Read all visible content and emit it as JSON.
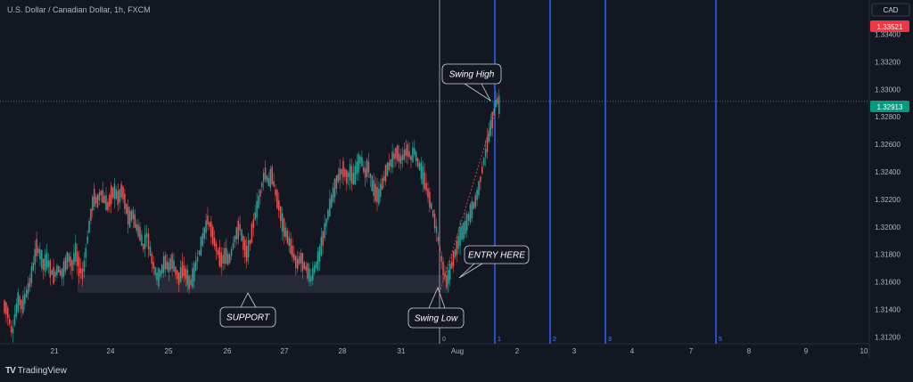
{
  "header": {
    "title": "U.S. Dollar / Canadian Dollar, 1h, FXCM"
  },
  "footer": {
    "brand": "TradingView",
    "brand_mark": "TV"
  },
  "price_scale": {
    "currency": "CAD"
  },
  "colors": {
    "background": "#131722",
    "up": "#26a69a",
    "down": "#ef5350",
    "vline": "#2962ff",
    "grid": "#1e222d",
    "support_zone": "#2a2e39"
  },
  "chart_data": {
    "type": "candlestick",
    "symbol": "U.S. Dollar / Canadian Dollar",
    "timeframe": "1h",
    "source": "FXCM",
    "ylim": [
      1.3115,
      1.3365
    ],
    "yticks": [
      "1.33400",
      "1.33200",
      "1.33000",
      "1.32800",
      "1.32600",
      "1.32400",
      "1.32200",
      "1.32000",
      "1.31800",
      "1.31600",
      "1.31400",
      "1.31200"
    ],
    "xticks": [
      "21",
      "24",
      "25",
      "26",
      "27",
      "28",
      "31",
      "Aug",
      "2",
      "3",
      "4",
      "7",
      "8",
      "9",
      "10"
    ],
    "price_badges": [
      {
        "value": "1.33521",
        "color": "#f23645"
      },
      {
        "value": "1.32913",
        "color": "#089981"
      }
    ],
    "current_price": 1.32913,
    "support_zone": {
      "low": 1.3152,
      "high": 1.3165
    },
    "key_points": [
      {
        "name": "Swing Low",
        "x": "31 Jul",
        "y": 1.3159
      },
      {
        "name": "Swing High",
        "x": "1 Aug",
        "y": 1.3298
      }
    ],
    "vertical_line_labels": [
      "0",
      "1",
      "2",
      "3",
      "5"
    ],
    "annotations": [
      "Swing High",
      "ENTRY HERE",
      "SUPPORT",
      "Swing Low"
    ],
    "path": [
      [
        0,
        1.3142
      ],
      [
        3,
        1.314
      ],
      [
        6,
        1.313
      ],
      [
        9,
        1.3122
      ],
      [
        12,
        1.3135
      ],
      [
        16,
        1.3148
      ],
      [
        20,
        1.3142
      ],
      [
        24,
        1.315
      ],
      [
        28,
        1.3158
      ],
      [
        32,
        1.317
      ],
      [
        36,
        1.3185
      ],
      [
        40,
        1.318
      ],
      [
        44,
        1.3172
      ],
      [
        48,
        1.3176
      ],
      [
        52,
        1.3168
      ],
      [
        56,
        1.3164
      ],
      [
        60,
        1.317
      ],
      [
        64,
        1.3165
      ],
      [
        68,
        1.3172
      ],
      [
        72,
        1.3178
      ],
      [
        76,
        1.3172
      ],
      [
        80,
        1.3182
      ],
      [
        84,
        1.317
      ],
      [
        88,
        1.3165
      ],
      [
        92,
        1.3185
      ],
      [
        96,
        1.3205
      ],
      [
        100,
        1.3222
      ],
      [
        104,
        1.3218
      ],
      [
        108,
        1.3225
      ],
      [
        112,
        1.322
      ],
      [
        116,
        1.3215
      ],
      [
        120,
        1.3224
      ],
      [
        124,
        1.3226
      ],
      [
        128,
        1.322
      ],
      [
        132,
        1.3228
      ],
      [
        136,
        1.3215
      ],
      [
        140,
        1.3205
      ],
      [
        144,
        1.321
      ],
      [
        148,
        1.32
      ],
      [
        152,
        1.3195
      ],
      [
        156,
        1.3185
      ],
      [
        160,
        1.3195
      ],
      [
        164,
        1.318
      ],
      [
        168,
        1.317
      ],
      [
        172,
        1.3162
      ],
      [
        176,
        1.3168
      ],
      [
        180,
        1.3175
      ],
      [
        184,
        1.317
      ],
      [
        188,
        1.3175
      ],
      [
        192,
        1.3168
      ],
      [
        196,
        1.3162
      ],
      [
        200,
        1.317
      ],
      [
        204,
        1.3165
      ],
      [
        208,
        1.3158
      ],
      [
        212,
        1.3165
      ],
      [
        216,
        1.3175
      ],
      [
        220,
        1.3185
      ],
      [
        224,
        1.3195
      ],
      [
        228,
        1.3205
      ],
      [
        232,
        1.3198
      ],
      [
        236,
        1.3188
      ],
      [
        240,
        1.318
      ],
      [
        244,
        1.3175
      ],
      [
        248,
        1.318
      ],
      [
        252,
        1.3175
      ],
      [
        256,
        1.3185
      ],
      [
        260,
        1.3195
      ],
      [
        264,
        1.32
      ],
      [
        268,
        1.3188
      ],
      [
        272,
        1.318
      ],
      [
        276,
        1.319
      ],
      [
        280,
        1.3205
      ],
      [
        284,
        1.3215
      ],
      [
        288,
        1.3228
      ],
      [
        292,
        1.324
      ],
      [
        296,
        1.3232
      ],
      [
        300,
        1.3238
      ],
      [
        304,
        1.3225
      ],
      [
        308,
        1.3215
      ],
      [
        312,
        1.3202
      ],
      [
        316,
        1.3195
      ],
      [
        320,
        1.3188
      ],
      [
        324,
        1.318
      ],
      [
        328,
        1.3172
      ],
      [
        332,
        1.3178
      ],
      [
        336,
        1.3172
      ],
      [
        340,
        1.3168
      ],
      [
        344,
        1.3162
      ],
      [
        348,
        1.317
      ],
      [
        352,
        1.3176
      ],
      [
        356,
        1.3188
      ],
      [
        360,
        1.32
      ],
      [
        364,
        1.3212
      ],
      [
        368,
        1.3222
      ],
      [
        372,
        1.3232
      ],
      [
        376,
        1.3238
      ],
      [
        380,
        1.3242
      ],
      [
        384,
        1.3236
      ],
      [
        388,
        1.324
      ],
      [
        392,
        1.3234
      ],
      [
        396,
        1.3245
      ],
      [
        400,
        1.325
      ],
      [
        404,
        1.3238
      ],
      [
        408,
        1.3245
      ],
      [
        412,
        1.3232
      ],
      [
        416,
        1.3225
      ],
      [
        420,
        1.3222
      ],
      [
        424,
        1.3232
      ],
      [
        428,
        1.324
      ],
      [
        432,
        1.3245
      ],
      [
        436,
        1.325
      ],
      [
        440,
        1.3255
      ],
      [
        444,
        1.3248
      ],
      [
        448,
        1.3252
      ],
      [
        452,
        1.3256
      ],
      [
        456,
        1.325
      ],
      [
        460,
        1.3255
      ],
      [
        464,
        1.3246
      ],
      [
        468,
        1.324
      ],
      [
        472,
        1.3232
      ],
      [
        476,
        1.3222
      ],
      [
        480,
        1.3212
      ],
      [
        484,
        1.32
      ],
      [
        488,
        1.3185
      ],
      [
        492,
        1.317
      ],
      [
        496,
        1.316
      ],
      [
        500,
        1.3168
      ],
      [
        504,
        1.3178
      ],
      [
        508,
        1.3186
      ],
      [
        512,
        1.3195
      ],
      [
        516,
        1.3198
      ],
      [
        520,
        1.3206
      ],
      [
        524,
        1.3212
      ],
      [
        528,
        1.3218
      ],
      [
        532,
        1.3228
      ],
      [
        536,
        1.3242
      ],
      [
        540,
        1.3255
      ],
      [
        544,
        1.3268
      ],
      [
        548,
        1.328
      ],
      [
        552,
        1.3293
      ],
      [
        556,
        1.3287
      ]
    ]
  }
}
